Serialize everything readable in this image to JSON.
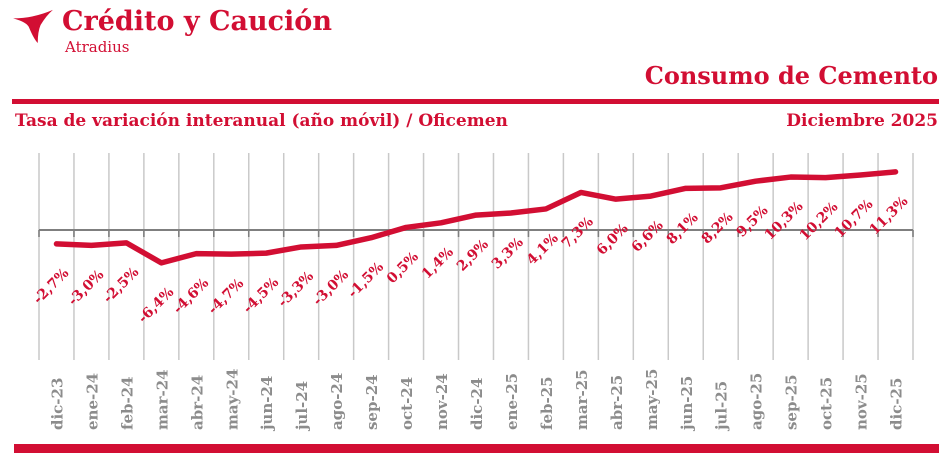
{
  "brand": {
    "name": "Crédito y Caución",
    "subname": "Atradius",
    "logo_icon": "atradius-bird-icon"
  },
  "header": {
    "title": "Consumo de Cemento",
    "subtitle_left": "Tasa de variación interanual  (año móvil) / Oficemen",
    "date": "Diciembre 2025"
  },
  "colors": {
    "brand_red": "#D20E33",
    "grid_gray": "#C9C9C9",
    "axis_gray": "#7F7F7F",
    "xlabel_gray": "#8C8C8C"
  },
  "chart_data": {
    "type": "line",
    "title": "Consumo de Cemento",
    "subtitle": "Tasa de variación interanual (año móvil) / Oficemen",
    "period_label": "Diciembre 2025",
    "unit": "%",
    "grid": "vertical-only",
    "zero_axis": true,
    "legend": "none",
    "ylim": [
      -8,
      13
    ],
    "categories": [
      "dic-23",
      "ene-24",
      "feb-24",
      "mar-24",
      "abr-24",
      "may-24",
      "jun-24",
      "jul-24",
      "ago-24",
      "sep-24",
      "oct-24",
      "nov-24",
      "dic-24",
      "ene-25",
      "feb-25",
      "mar-25",
      "abr-25",
      "may-25",
      "jun-25",
      "jul-25",
      "ago-25",
      "sep-25",
      "oct-25",
      "nov-25",
      "dic-25"
    ],
    "values": [
      -2.7,
      -3.0,
      -2.5,
      -6.4,
      -4.6,
      -4.7,
      -4.5,
      -3.3,
      -3.0,
      -1.5,
      0.5,
      1.4,
      2.9,
      3.3,
      4.1,
      7.3,
      6.0,
      6.6,
      8.1,
      8.2,
      9.5,
      10.3,
      10.2,
      10.7,
      11.3
    ],
    "labels": [
      "-2,7%",
      "-3,0%",
      "-2,5%",
      "-6,4%",
      "-4,6%",
      "-4,7%",
      "-4,5%",
      "-3,3%",
      "-3,0%",
      "-1,5%",
      "0,5%",
      "1,4%",
      "2,9%",
      "3,3%",
      "4,1%",
      "7,3%",
      "6,0%",
      "6,6%",
      "8,1%",
      "8,2%",
      "9,5%",
      "10,3%",
      "10,2%",
      "10,7%",
      "11,3%"
    ]
  }
}
